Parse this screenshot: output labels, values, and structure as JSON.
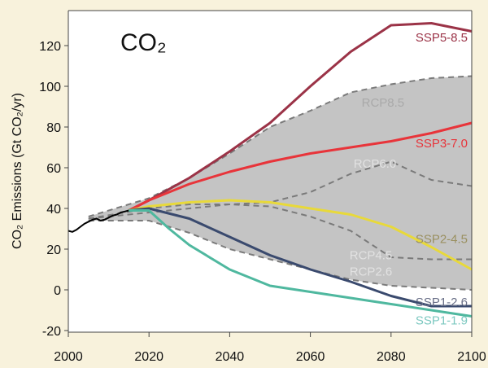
{
  "chart_data": {
    "type": "line",
    "title": "CO₂",
    "ylabel": "CO₂ Emissions (Gt CO₂/yr)",
    "xlabel": "",
    "xlim": [
      2000,
      2100
    ],
    "ylim": [
      -20,
      135
    ],
    "xticks": [
      2000,
      2020,
      2040,
      2060,
      2080,
      2100
    ],
    "yticks": [
      -20,
      0,
      20,
      40,
      60,
      80,
      100,
      120
    ],
    "grid": false,
    "shaded_range": {
      "x": [
        2005,
        2020,
        2030,
        2040,
        2050,
        2060,
        2070,
        2080,
        2090,
        2100
      ],
      "upper": [
        36,
        45,
        55,
        67,
        80,
        88,
        97,
        101,
        104,
        105
      ],
      "lower": [
        34,
        34,
        28,
        20,
        15,
        10,
        5,
        2,
        1,
        0
      ],
      "color": "#c4c4c4"
    },
    "historical": {
      "x": [
        2000,
        2001,
        2002,
        2003,
        2004,
        2005,
        2006,
        2007,
        2008,
        2009,
        2010,
        2011,
        2012,
        2013,
        2014,
        2015
      ],
      "values": [
        29,
        28.5,
        29.5,
        31,
        32.5,
        33.5,
        34.5,
        35,
        34,
        34.5,
        35.5,
        36.5,
        37,
        38,
        38.5,
        39
      ],
      "color": "#000000"
    },
    "series": [
      {
        "name": "RCP8.5",
        "style": "dashed",
        "color": "#7a7a7a",
        "label_color": "#a9a9a9",
        "x": [
          2005,
          2020,
          2030,
          2040,
          2050,
          2060,
          2070,
          2080,
          2090,
          2100
        ],
        "values": [
          36,
          45,
          55,
          67,
          80,
          88,
          97,
          101,
          104,
          105
        ]
      },
      {
        "name": "RCP6.0",
        "style": "dashed",
        "color": "#7a7a7a",
        "label_color": "#e2e2e2",
        "x": [
          2005,
          2020,
          2030,
          2040,
          2050,
          2060,
          2070,
          2080,
          2090,
          2100
        ],
        "values": [
          35,
          38,
          40,
          42,
          43,
          48,
          57,
          63,
          54,
          51
        ]
      },
      {
        "name": "RCP4.5",
        "style": "dashed",
        "color": "#7a7a7a",
        "label_color": "#e2e2e2",
        "x": [
          2005,
          2020,
          2030,
          2040,
          2050,
          2060,
          2070,
          2080,
          2090,
          2100
        ],
        "values": [
          35,
          40,
          42,
          42,
          41,
          36,
          29,
          16,
          15,
          15
        ]
      },
      {
        "name": "RCP2.6",
        "style": "dashed",
        "color": "#7a7a7a",
        "label_color": "#e2e2e2",
        "x": [
          2005,
          2020,
          2030,
          2040,
          2050,
          2060,
          2070,
          2080,
          2090,
          2100
        ],
        "values": [
          34,
          34,
          28,
          20,
          15,
          10,
          5,
          2,
          1,
          0
        ]
      },
      {
        "name": "SSP5-8.5",
        "style": "solid",
        "color": "#9b3347",
        "x": [
          2015,
          2020,
          2030,
          2040,
          2050,
          2060,
          2070,
          2080,
          2090,
          2100
        ],
        "values": [
          39,
          44,
          55,
          68,
          82,
          100,
          117,
          130,
          131,
          127
        ]
      },
      {
        "name": "SSP3-7.0",
        "style": "solid",
        "color": "#e8343a",
        "x": [
          2015,
          2020,
          2030,
          2040,
          2050,
          2060,
          2070,
          2080,
          2090,
          2100
        ],
        "values": [
          39,
          44,
          52,
          58,
          63,
          67,
          70,
          73,
          77,
          82
        ]
      },
      {
        "name": "SSP2-4.5",
        "style": "solid",
        "color": "#e8d93a",
        "label_color": "#9a9060",
        "x": [
          2015,
          2020,
          2030,
          2040,
          2050,
          2060,
          2070,
          2080,
          2090,
          2100
        ],
        "values": [
          39,
          41,
          43,
          44,
          43,
          40,
          37,
          31,
          21,
          10
        ]
      },
      {
        "name": "SSP1-2.6",
        "style": "solid",
        "color": "#3a4a6e",
        "label_color": "#6a7088",
        "x": [
          2015,
          2020,
          2030,
          2040,
          2050,
          2060,
          2070,
          2080,
          2090,
          2100
        ],
        "values": [
          39,
          40,
          35,
          26,
          17,
          10,
          4,
          -3,
          -8,
          -8
        ]
      },
      {
        "name": "SSP1-1.9",
        "style": "solid",
        "color": "#4fb89f",
        "label_color": "#7cc8c0",
        "x": [
          2015,
          2020,
          2025,
          2030,
          2040,
          2050,
          2060,
          2070,
          2080,
          2090,
          2100
        ],
        "values": [
          39,
          39,
          30,
          22,
          10,
          2,
          -1,
          -4,
          -7,
          -10,
          -13
        ]
      }
    ],
    "label_positions": {
      "SSP5-8.5": [
        2099,
        122
      ],
      "RCP8.5": [
        2078,
        90
      ],
      "SSP3-7.0": [
        2099,
        70
      ],
      "RCP6.0": [
        2076,
        60
      ],
      "SSP2-4.5": [
        2099,
        23
      ],
      "RCP4.5": [
        2075,
        15
      ],
      "RCP2.6": [
        2075,
        7
      ],
      "SSP1-2.6": [
        2099,
        -8
      ],
      "SSP1-1.9": [
        2099,
        -17
      ]
    }
  }
}
